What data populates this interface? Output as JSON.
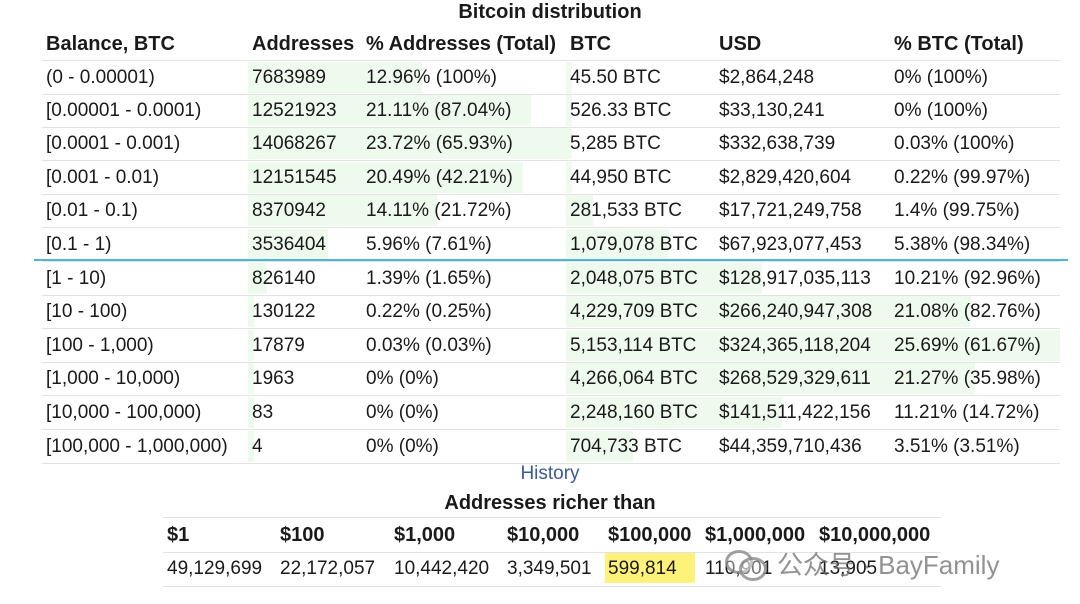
{
  "title": "Bitcoin distribution",
  "headers": [
    "Balance, BTC",
    "Addresses",
    "% Addresses (Total)",
    "BTC",
    "USD",
    "% BTC (Total)"
  ],
  "rows": [
    {
      "range": "(0 - 0.00001)",
      "addresses": "7683989",
      "pct_addr": "12.96% (100%)",
      "btc": "45.50 BTC",
      "usd": "$2,864,248",
      "pct_btc": "0% (100%)"
    },
    {
      "range": "[0.00001 - 0.0001)",
      "addresses": "12521923",
      "pct_addr": "21.11% (87.04%)",
      "btc": "526.33 BTC",
      "usd": "$33,130,241",
      "pct_btc": "0% (100%)"
    },
    {
      "range": "[0.0001 - 0.001)",
      "addresses": "14068267",
      "pct_addr": "23.72% (65.93%)",
      "btc": "5,285 BTC",
      "usd": "$332,638,739",
      "pct_btc": "0.03% (100%)"
    },
    {
      "range": "[0.001 - 0.01)",
      "addresses": "12151545",
      "pct_addr": "20.49% (42.21%)",
      "btc": "44,950 BTC",
      "usd": "$2,829,420,604",
      "pct_btc": "0.22% (99.97%)"
    },
    {
      "range": "[0.01 - 0.1)",
      "addresses": "8370942",
      "pct_addr": "14.11% (21.72%)",
      "btc": "281,533 BTC",
      "usd": "$17,721,249,758",
      "pct_btc": "1.4% (99.75%)"
    },
    {
      "range": "[0.1 - 1)",
      "addresses": "3536404",
      "pct_addr": "5.96% (7.61%)",
      "btc": "1,079,078 BTC",
      "usd": "$67,923,077,453",
      "pct_btc": "5.38% (98.34%)"
    },
    {
      "range": "[1 - 10)",
      "addresses": "826140",
      "pct_addr": "1.39% (1.65%)",
      "btc": "2,048,075 BTC",
      "usd": "$128,917,035,113",
      "pct_btc": "10.21% (92.96%)"
    },
    {
      "range": "[10 - 100)",
      "addresses": "130122",
      "pct_addr": "0.22% (0.25%)",
      "btc": "4,229,709 BTC",
      "usd": "$266,240,947,308",
      "pct_btc": "21.08% (82.76%)"
    },
    {
      "range": "[100 - 1,000)",
      "addresses": "17879",
      "pct_addr": "0.03% (0.03%)",
      "btc": "5,153,114 BTC",
      "usd": "$324,365,118,204",
      "pct_btc": "25.69% (61.67%)"
    },
    {
      "range": "[1,000 - 10,000)",
      "addresses": "1963",
      "pct_addr": "0% (0%)",
      "btc": "4,266,064 BTC",
      "usd": "$268,529,329,611",
      "pct_btc": "21.27% (35.98%)"
    },
    {
      "range": "[10,000 - 100,000)",
      "addresses": "83",
      "pct_addr": "0% (0%)",
      "btc": "2,248,160 BTC",
      "usd": "$141,511,422,156",
      "pct_btc": "11.21% (14.72%)"
    },
    {
      "range": "[100,000 - 1,000,000)",
      "addresses": "4",
      "pct_addr": "0% (0%)",
      "btc": "704,733 BTC",
      "usd": "$44,359,710,436",
      "pct_btc": "3.51% (3.51%)"
    }
  ],
  "history_link": "History",
  "richer": {
    "title": "Addresses richer than",
    "headers": [
      "$1",
      "$100",
      "$1,000",
      "$10,000",
      "$100,000",
      "$1,000,000",
      "$10,000,000"
    ],
    "values": [
      "49,129,699",
      "22,172,057",
      "10,442,420",
      "3,349,501",
      "599,814",
      "110,901",
      "13,905"
    ],
    "highlight_index": 4,
    "highlight_color": "#fff27a"
  },
  "watermark": {
    "text": "公众号 · BayFamily",
    "icon": "wechat-icon"
  },
  "colors": {
    "bar": "#eefaee",
    "divider": "#4fb4d6",
    "link": "#3a5a9a"
  }
}
